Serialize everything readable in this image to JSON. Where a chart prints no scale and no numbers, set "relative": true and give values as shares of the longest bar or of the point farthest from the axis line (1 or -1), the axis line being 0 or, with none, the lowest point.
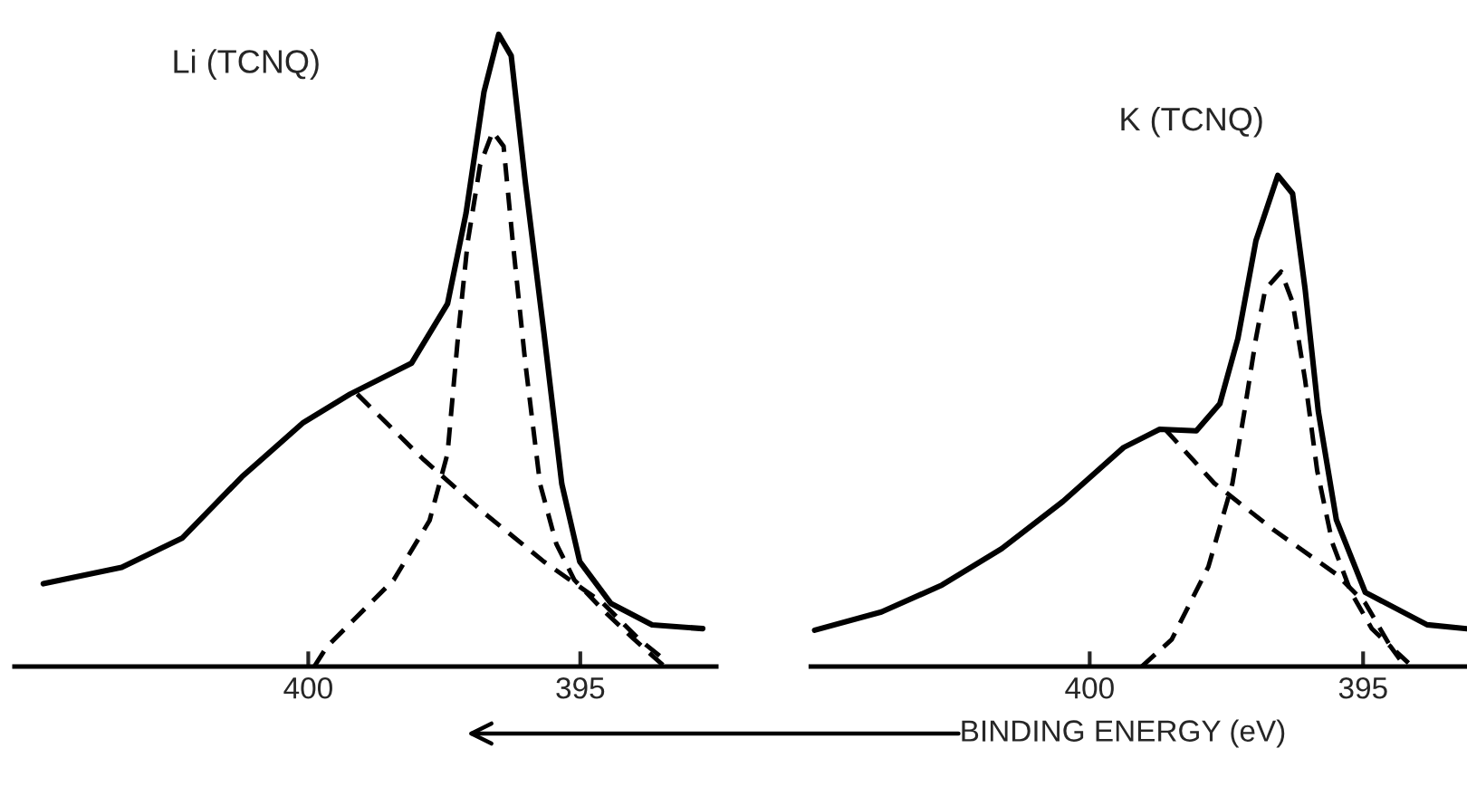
{
  "chart_data": [
    {
      "type": "line",
      "title": "Li (TCNQ)",
      "relative": true,
      "xlim": [
        405.4,
        392.5
      ],
      "xticks": [
        400,
        395
      ],
      "series": [
        {
          "color": "#000000",
          "line_style": "solid",
          "x": [
            404.87,
            403.43,
            402.32,
            401.22,
            400.09,
            399.23,
            398.1,
            397.44,
            397.1,
            396.77,
            396.5,
            396.27,
            396.01,
            395.67,
            395.34,
            395.01,
            394.44,
            393.68,
            392.75
          ],
          "values": [
            0.131,
            0.157,
            0.203,
            0.3,
            0.386,
            0.431,
            0.48,
            0.574,
            0.717,
            0.909,
            1.0,
            0.966,
            0.766,
            0.529,
            0.289,
            0.166,
            0.1,
            0.066,
            0.06
          ]
        },
        {
          "color": "#000000",
          "line_style": "dashed",
          "x": [
            399.1,
            397.9,
            396.77,
            395.67,
            394.58,
            393.92,
            393.38
          ],
          "values": [
            0.431,
            0.329,
            0.243,
            0.166,
            0.1,
            0.043,
            0.006
          ]
        },
        {
          "color": "#000000",
          "line_style": "dashed",
          "x": [
            399.89,
            399.66,
            398.43,
            397.77,
            397.44,
            397.24,
            397.07,
            396.84,
            396.61,
            396.41,
            396.24,
            396.01,
            395.74,
            395.44,
            395.11,
            394.58,
            394.01,
            393.45
          ],
          "values": [
            0,
            0.031,
            0.137,
            0.231,
            0.337,
            0.529,
            0.671,
            0.794,
            0.846,
            0.823,
            0.671,
            0.48,
            0.289,
            0.194,
            0.137,
            0.089,
            0.043,
            0
          ]
        }
      ]
    },
    {
      "type": "line",
      "title": "K (TCNQ)",
      "xlabel": "BINDING ENERGY (eV)",
      "relative": true,
      "xlim": [
        405.1,
        393.1
      ],
      "xticks": [
        400,
        395
      ],
      "series": [
        {
          "color": "#000000",
          "line_style": "solid",
          "x": [
            405.03,
            403.81,
            402.7,
            401.61,
            400.49,
            399.38,
            398.72,
            398.05,
            397.62,
            397.29,
            396.96,
            396.56,
            396.29,
            396.06,
            395.82,
            395.49,
            394.96,
            393.83,
            393.1
          ],
          "values": [
            0.074,
            0.111,
            0.166,
            0.24,
            0.336,
            0.446,
            0.483,
            0.48,
            0.535,
            0.668,
            0.867,
            1.0,
            0.963,
            0.768,
            0.52,
            0.299,
            0.151,
            0.085,
            0.077
          ]
        },
        {
          "color": "#000000",
          "line_style": "dashed",
          "x": [
            398.62,
            397.72,
            396.62,
            395.49,
            394.96,
            394.5,
            394.17
          ],
          "values": [
            0.483,
            0.373,
            0.277,
            0.188,
            0.129,
            0.041,
            0.007
          ]
        },
        {
          "color": "#000000",
          "line_style": "dashed",
          "x": [
            399.05,
            398.5,
            397.83,
            397.39,
            397.17,
            396.96,
            396.79,
            396.5,
            396.29,
            396.06,
            395.84,
            395.56,
            395.22,
            394.84,
            394.5,
            394.23
          ],
          "values": [
            0,
            0.055,
            0.203,
            0.373,
            0.52,
            0.668,
            0.768,
            0.804,
            0.742,
            0.583,
            0.399,
            0.251,
            0.151,
            0.077,
            0.041,
            0
          ]
        }
      ]
    }
  ]
}
